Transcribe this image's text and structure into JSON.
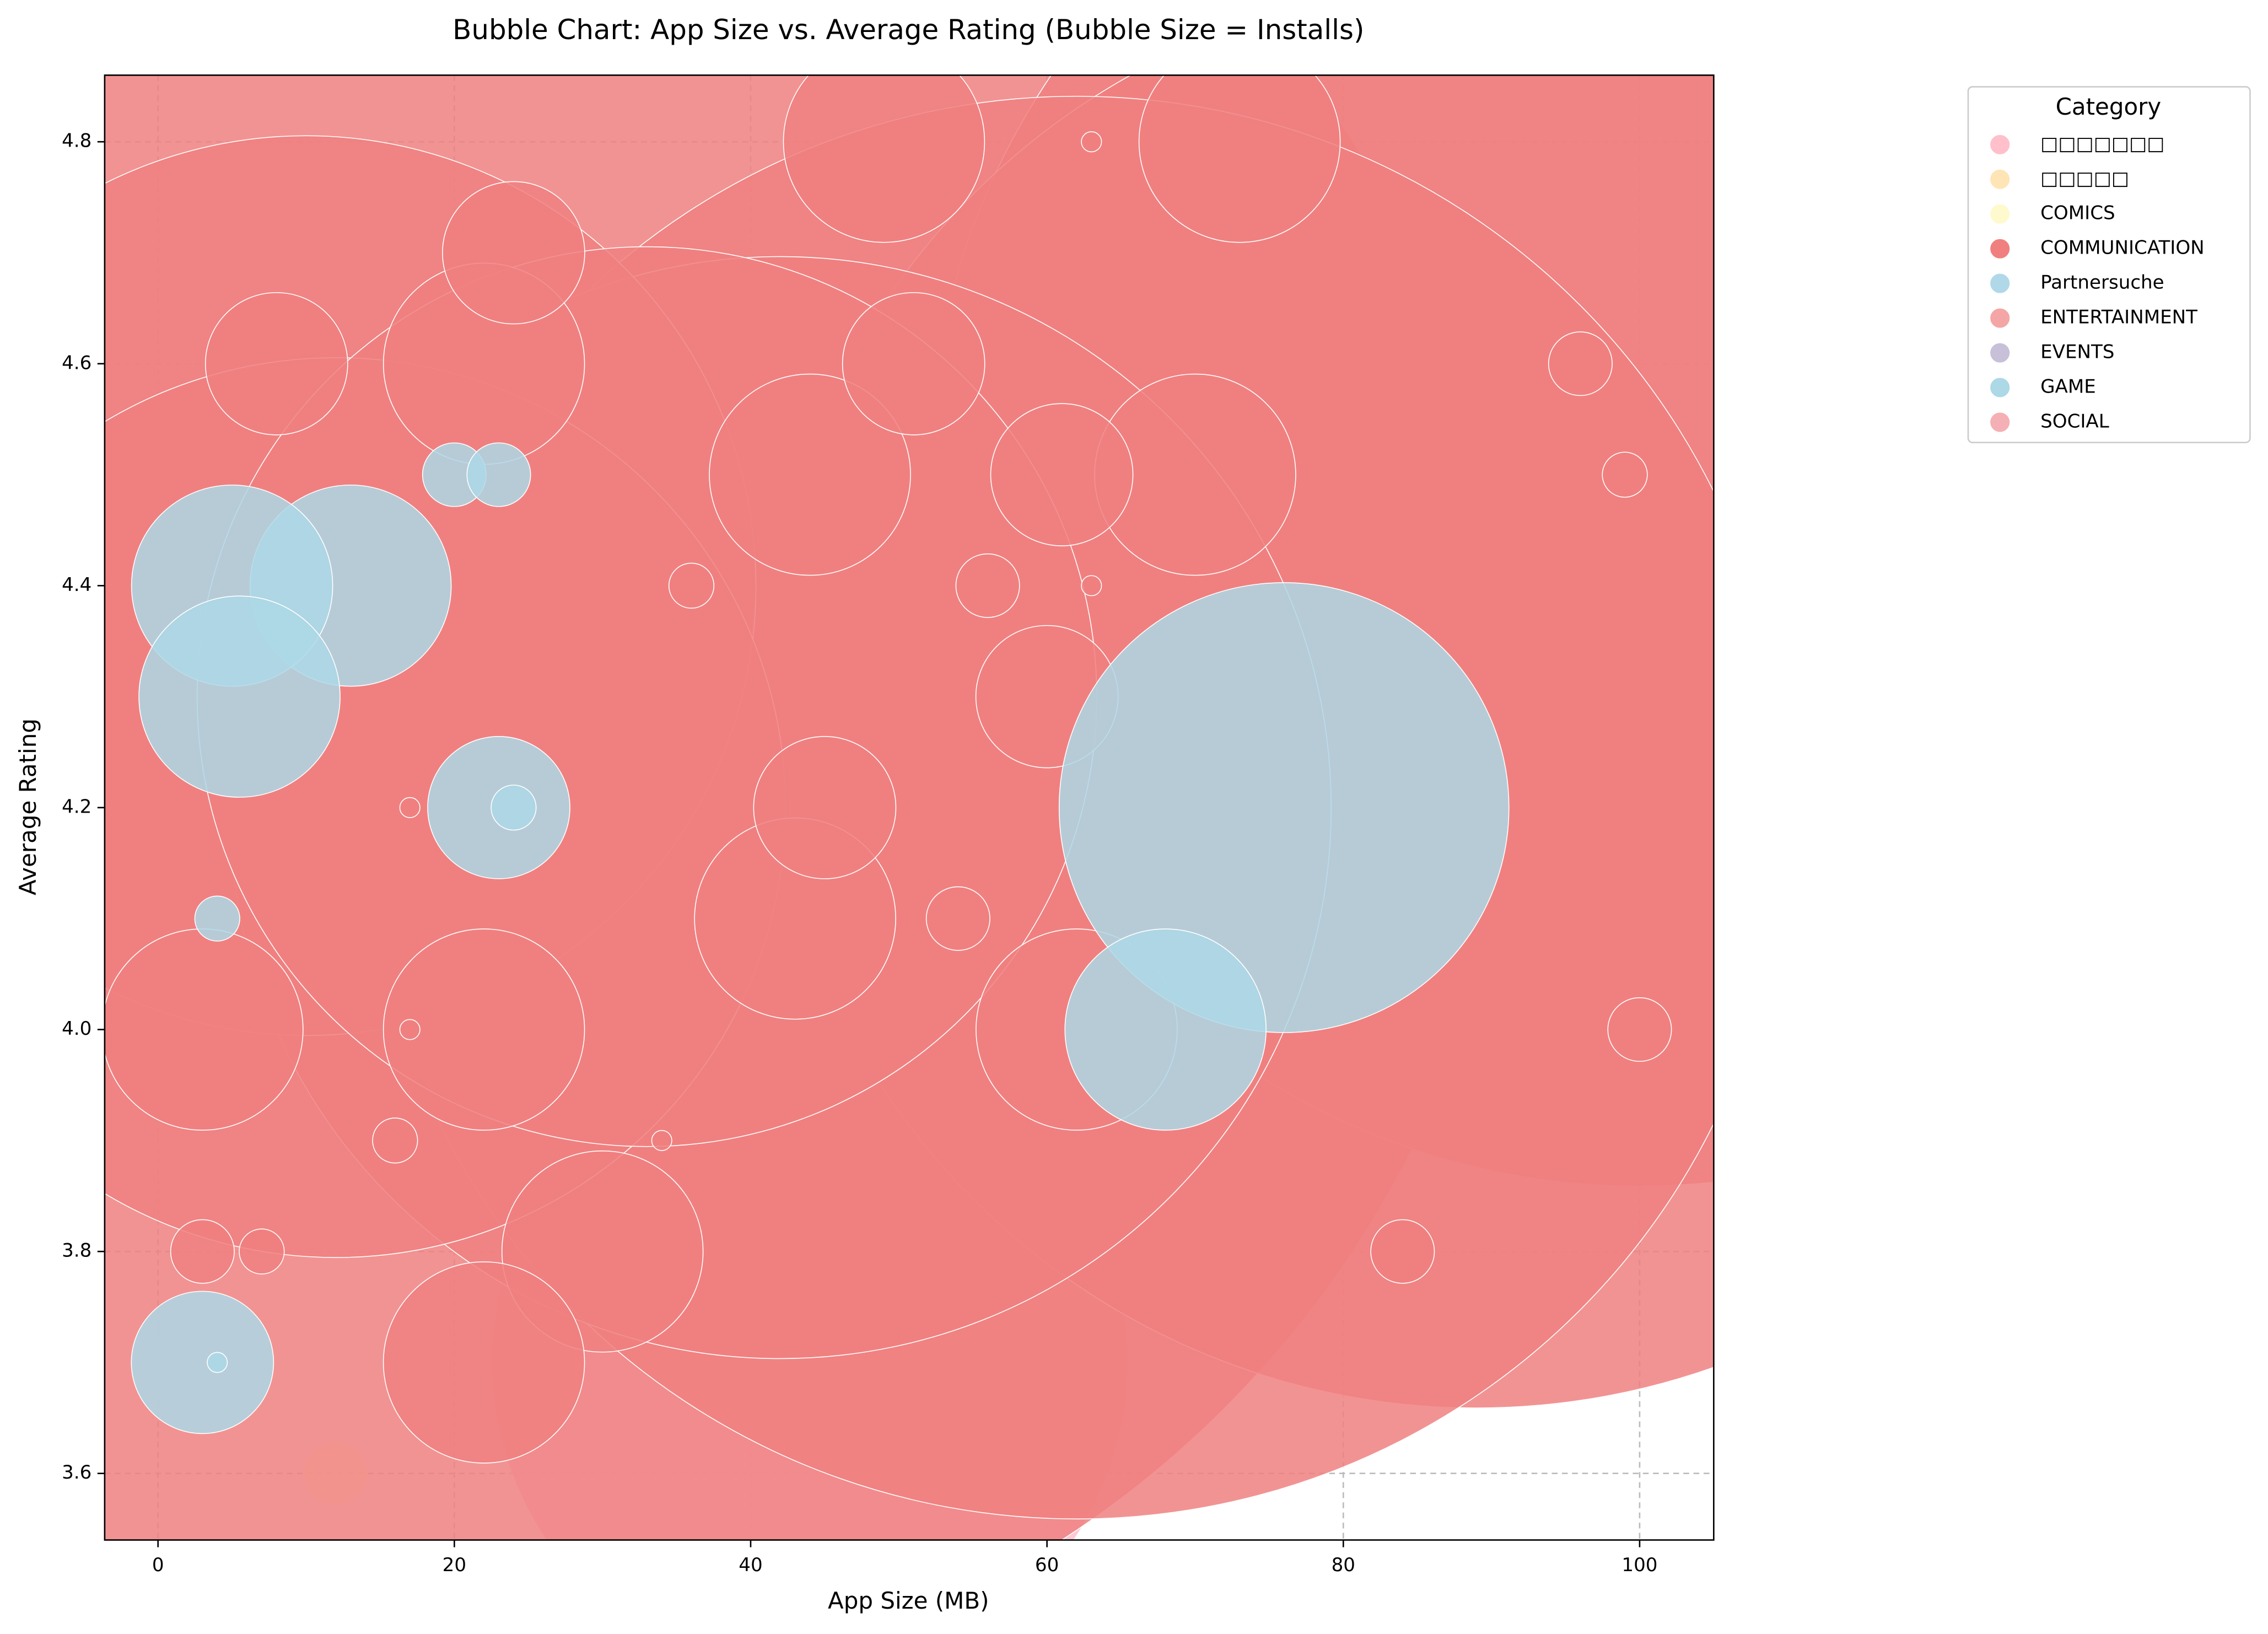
{
  "chart_data": {
    "type": "bubble",
    "title": "Bubble Chart: App Size vs. Average Rating (Bubble Size = Installs)",
    "x_label": "App Size (MB)",
    "y_label": "Average Rating",
    "legend_title": "Category",
    "legend_position": "upper right",
    "grid": true,
    "xlim": [
      -3.6,
      105
    ],
    "ylim": [
      3.54,
      4.86
    ],
    "xticks": [
      0,
      20,
      40,
      60,
      80,
      100
    ],
    "yticks": [
      3.6,
      3.8,
      {
        "value": 4.0,
        "label": "4.0"
      },
      4.2,
      4.4,
      4.6,
      4.8
    ],
    "series": [
      {
        "name": "□□□□□□□",
        "color": "#ffc0cb",
        "x": [
          44
        ],
        "values": [
          3.7
        ],
        "sizes": [
          100000000
        ]
      },
      {
        "name": "□□□□□",
        "color": "#ffe4b5",
        "x": [],
        "values": [],
        "sizes": []
      },
      {
        "name": "COMICS",
        "color": "#fffacd",
        "x": [
          12
        ],
        "values": [
          3.6
        ],
        "sizes": [
          1000000
        ]
      },
      {
        "name": "COMMUNICATION",
        "color": "#f08080",
        "x": [
          24,
          100,
          89,
          62,
          42,
          10,
          12,
          33,
          22,
          44,
          70,
          43,
          62,
          22,
          30,
          22,
          49,
          73,
          3,
          24,
          51,
          61,
          45,
          60,
          8,
          56,
          54,
          3,
          84,
          100,
          96,
          36,
          7,
          16,
          99,
          63,
          63,
          17,
          17,
          34
        ],
        "values": [
          4.3,
          4.5,
          4.3,
          4.2,
          4.2,
          4.4,
          4.2,
          4.3,
          4.6,
          4.5,
          4.5,
          4.1,
          4.0,
          4.0,
          3.8,
          3.7,
          4.8,
          4.8,
          4.0,
          4.7,
          4.6,
          4.5,
          4.2,
          4.3,
          4.6,
          4.4,
          4.1,
          3.8,
          3.8,
          4.0,
          4.6,
          4.4,
          3.8,
          3.9,
          4.5,
          4.8,
          4.4,
          4.2,
          4.0,
          3.9
        ],
        "sizes": [
          1000000000,
          500000000,
          500000000,
          500000000,
          300000000,
          200000000,
          200000000,
          200000000,
          10000000,
          10000000,
          10000000,
          10000000,
          10000000,
          10000000,
          10000000,
          10000000,
          10000000,
          10000000,
          10000000,
          5000000,
          5000000,
          5000000,
          5000000,
          5000000,
          5000000,
          1000000,
          1000000,
          1000000,
          1000000,
          1000000,
          1000000,
          500000,
          500000,
          500000,
          500000,
          100000,
          100000,
          100000,
          100000,
          100000
        ]
      },
      {
        "name": "Partnersuche",
        "color": "#b0d8e8",
        "x": [],
        "values": [],
        "sizes": []
      },
      {
        "name": "ENTERTAINMENT",
        "color": "#f4a6a6",
        "x": [],
        "values": [],
        "sizes": []
      },
      {
        "name": "EVENTS",
        "color": "#c8c0d8",
        "x": [],
        "values": [],
        "sizes": []
      },
      {
        "name": "GAME",
        "color": "#add8e6",
        "x": [
          76,
          13,
          5,
          5.5,
          68,
          23,
          3,
          20,
          23,
          24,
          4,
          4
        ],
        "values": [
          4.2,
          4.4,
          4.4,
          4.3,
          4.0,
          4.2,
          3.7,
          4.5,
          4.5,
          4.2,
          4.1,
          3.7
        ],
        "sizes": [
          50000000,
          10000000,
          10000000,
          10000000,
          10000000,
          5000000,
          5000000,
          1000000,
          1000000,
          500000,
          500000,
          100000
        ]
      },
      {
        "name": "SOCIAL",
        "color": "#f4b0b4",
        "x": [],
        "values": [],
        "sizes": []
      }
    ]
  }
}
